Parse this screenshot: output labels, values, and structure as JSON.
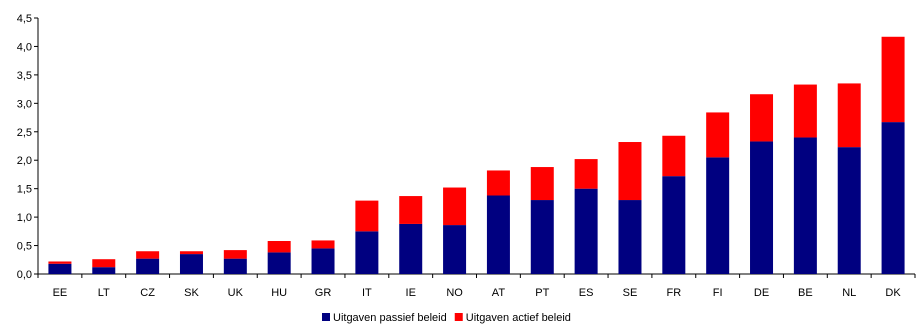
{
  "chart_data": {
    "type": "bar",
    "stacked": true,
    "categories": [
      "EE",
      "LT",
      "CZ",
      "SK",
      "UK",
      "HU",
      "GR",
      "IT",
      "IE",
      "NO",
      "AT",
      "PT",
      "ES",
      "SE",
      "FR",
      "FI",
      "DE",
      "BE",
      "NL",
      "DK"
    ],
    "series": [
      {
        "name": "Uitgaven passief beleid",
        "color": "#000080",
        "values": [
          0.18,
          0.12,
          0.27,
          0.35,
          0.27,
          0.38,
          0.45,
          0.75,
          0.88,
          0.86,
          1.38,
          1.3,
          1.5,
          1.3,
          1.72,
          2.05,
          2.33,
          2.4,
          2.23,
          2.67
        ]
      },
      {
        "name": "Uitgaven actief beleid",
        "color": "#ff0000",
        "values": [
          0.04,
          0.14,
          0.13,
          0.05,
          0.15,
          0.2,
          0.14,
          0.54,
          0.49,
          0.66,
          0.44,
          0.58,
          0.52,
          1.02,
          0.71,
          0.79,
          0.83,
          0.93,
          1.12,
          1.5
        ]
      }
    ],
    "yticks": [
      "0,0",
      "0,5",
      "1,0",
      "1,5",
      "2,0",
      "2,5",
      "3,0",
      "3,5",
      "4,0",
      "4,5"
    ],
    "ylim": [
      0,
      4.5
    ],
    "grid": false,
    "legend_position": "bottom-center"
  }
}
